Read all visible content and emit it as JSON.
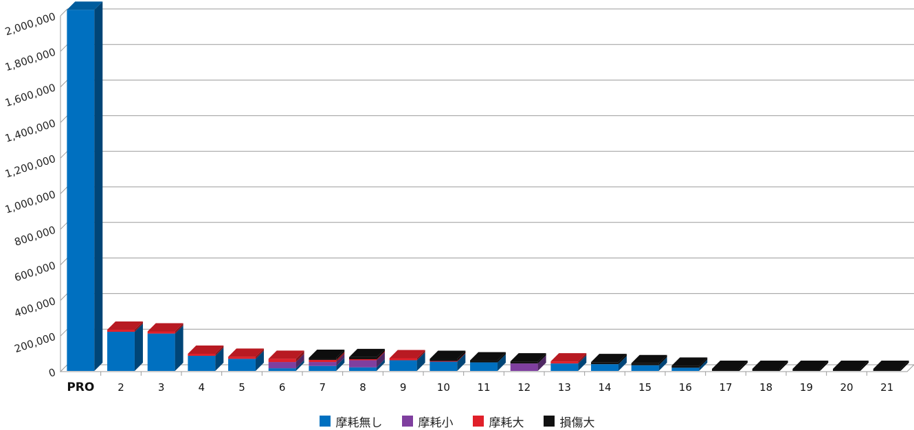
{
  "chart_data": {
    "type": "bar",
    "stacked": true,
    "three_d": true,
    "title": "",
    "xlabel": "",
    "ylabel": "",
    "ylim": [
      0,
      2000000
    ],
    "yticks": [
      0,
      200000,
      400000,
      600000,
      800000,
      1000000,
      1200000,
      1400000,
      1600000,
      1800000,
      2000000
    ],
    "ytick_labels": [
      "0",
      "200,000",
      "400,000",
      "600,000",
      "800,000",
      "1,000,000",
      "1,200,000",
      "1,400,000",
      "1,600,000",
      "1,800,000",
      "2,000,000"
    ],
    "grid": true,
    "legend_position": "bottom",
    "categories": [
      "PRO",
      "2",
      "3",
      "4",
      "5",
      "6",
      "7",
      "8",
      "9",
      "10",
      "11",
      "12",
      "13",
      "14",
      "15",
      "16",
      "17",
      "18",
      "19",
      "20",
      "21"
    ],
    "series": [
      {
        "name": "摩耗無し",
        "color": "#0070C0",
        "values": [
          2030000,
          220000,
          210000,
          85000,
          68000,
          15000,
          28000,
          20000,
          60000,
          52000,
          48000,
          0,
          42000,
          38000,
          32000,
          18000,
          0,
          0,
          0,
          0,
          0
        ]
      },
      {
        "name": "摩耗小",
        "color": "#7F3F9F",
        "values": [
          0,
          0,
          0,
          0,
          0,
          35000,
          22000,
          40000,
          0,
          0,
          0,
          42000,
          0,
          0,
          0,
          0,
          0,
          0,
          0,
          0,
          0
        ]
      },
      {
        "name": "摩耗大",
        "color": "#E0202A",
        "values": [
          0,
          10000,
          12000,
          8000,
          6000,
          18000,
          12000,
          6000,
          8000,
          4000,
          0,
          0,
          6000,
          0,
          0,
          0,
          0,
          0,
          0,
          0,
          0
        ]
      },
      {
        "name": "損傷大",
        "color": "#111111",
        "values": [
          0,
          0,
          0,
          0,
          0,
          0,
          8000,
          6000,
          0,
          10000,
          10000,
          6000,
          0,
          6000,
          6000,
          10000,
          3000,
          3000,
          3000,
          3000,
          3000
        ]
      }
    ]
  }
}
